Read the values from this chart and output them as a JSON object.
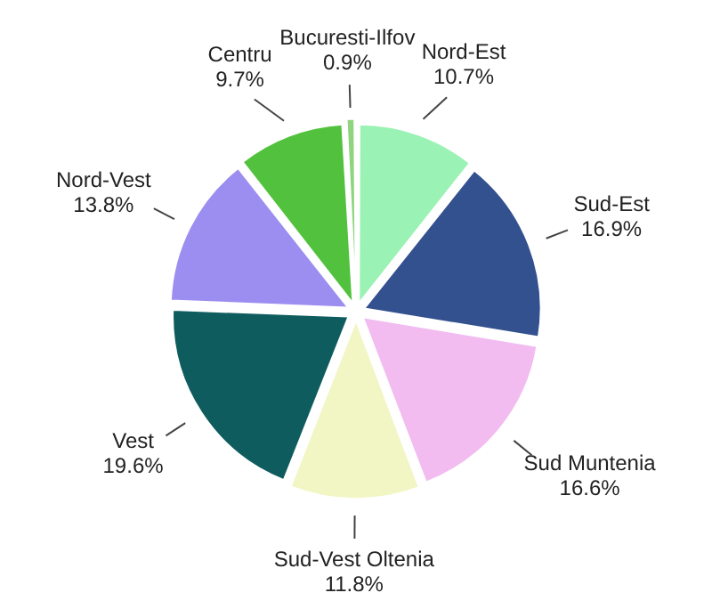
{
  "chart_data": {
    "type": "pie",
    "categories": [
      "Nord-Est",
      "Sud-Est",
      "Sud Muntenia",
      "Sud-Vest Oltenia",
      "Vest",
      "Nord-Vest",
      "Centru",
      "Bucuresti-Ilfov"
    ],
    "values": [
      10.7,
      16.9,
      16.6,
      11.8,
      19.6,
      13.8,
      9.7,
      0.9
    ],
    "value_labels": [
      "10.7%",
      "16.9%",
      "16.6%",
      "11.8%",
      "19.6%",
      "13.8%",
      "9.7%",
      "0.9%"
    ],
    "colors": [
      "#9af2b4",
      "#33508f",
      "#f2bcf0",
      "#f2f6c4",
      "#0f5c5e",
      "#9c8ef0",
      "#52c23e",
      "#8fd47e"
    ],
    "legend": false
  }
}
